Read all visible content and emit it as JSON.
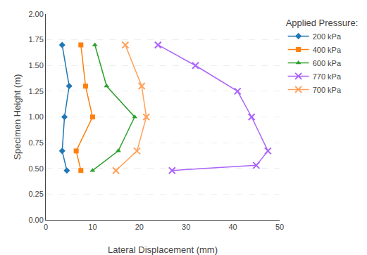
{
  "chart_data": {
    "type": "line",
    "x_label": "Lateral Displacement (mm)",
    "y_label": "Specimen Height (m)",
    "legend_title": "Applied Pressure:",
    "legend": "right",
    "grid": true,
    "xlim": [
      0,
      50
    ],
    "ylim": [
      0.0,
      2.0
    ],
    "xticks": [
      0,
      10,
      20,
      30,
      40,
      50
    ],
    "yticks": [
      {
        "value": 0.0,
        "label": "0.00"
      },
      0.25,
      {
        "value": 0.5,
        "label": "0.50"
      },
      0.75,
      {
        "value": 1.0,
        "label": "1.00"
      },
      1.25,
      {
        "value": 1.5,
        "label": "1.50"
      },
      1.75,
      {
        "value": 2.0,
        "label": "2.00"
      }
    ],
    "series": [
      {
        "name": "200 kPa",
        "marker": "diamond",
        "x": [
          4.5,
          3.5,
          4.0,
          5.0,
          3.5
        ],
        "values": [
          0.48,
          0.67,
          1.0,
          1.3,
          1.7
        ]
      },
      {
        "name": "400 kPa",
        "marker": "square",
        "x": [
          7.5,
          6.5,
          10.0,
          8.5,
          7.5
        ],
        "values": [
          0.48,
          0.67,
          1.0,
          1.3,
          1.7
        ]
      },
      {
        "name": "600 kPa",
        "marker": "triangle",
        "x": [
          10.0,
          15.5,
          19.0,
          13.0,
          10.5
        ],
        "values": [
          0.48,
          0.67,
          1.0,
          1.3,
          1.7
        ]
      },
      {
        "name": "770 kPa",
        "marker": "x",
        "x": [
          27.0,
          45.0,
          47.5,
          44.0,
          41.0,
          32.0,
          24.0
        ],
        "values": [
          0.48,
          0.53,
          0.67,
          1.0,
          1.25,
          1.5,
          1.7
        ]
      },
      {
        "name": "700 kPa",
        "marker": "x",
        "x": [
          15.0,
          19.5,
          21.5,
          20.5,
          17.0
        ],
        "values": [
          0.48,
          0.67,
          1.0,
          1.3,
          1.7
        ]
      }
    ]
  }
}
